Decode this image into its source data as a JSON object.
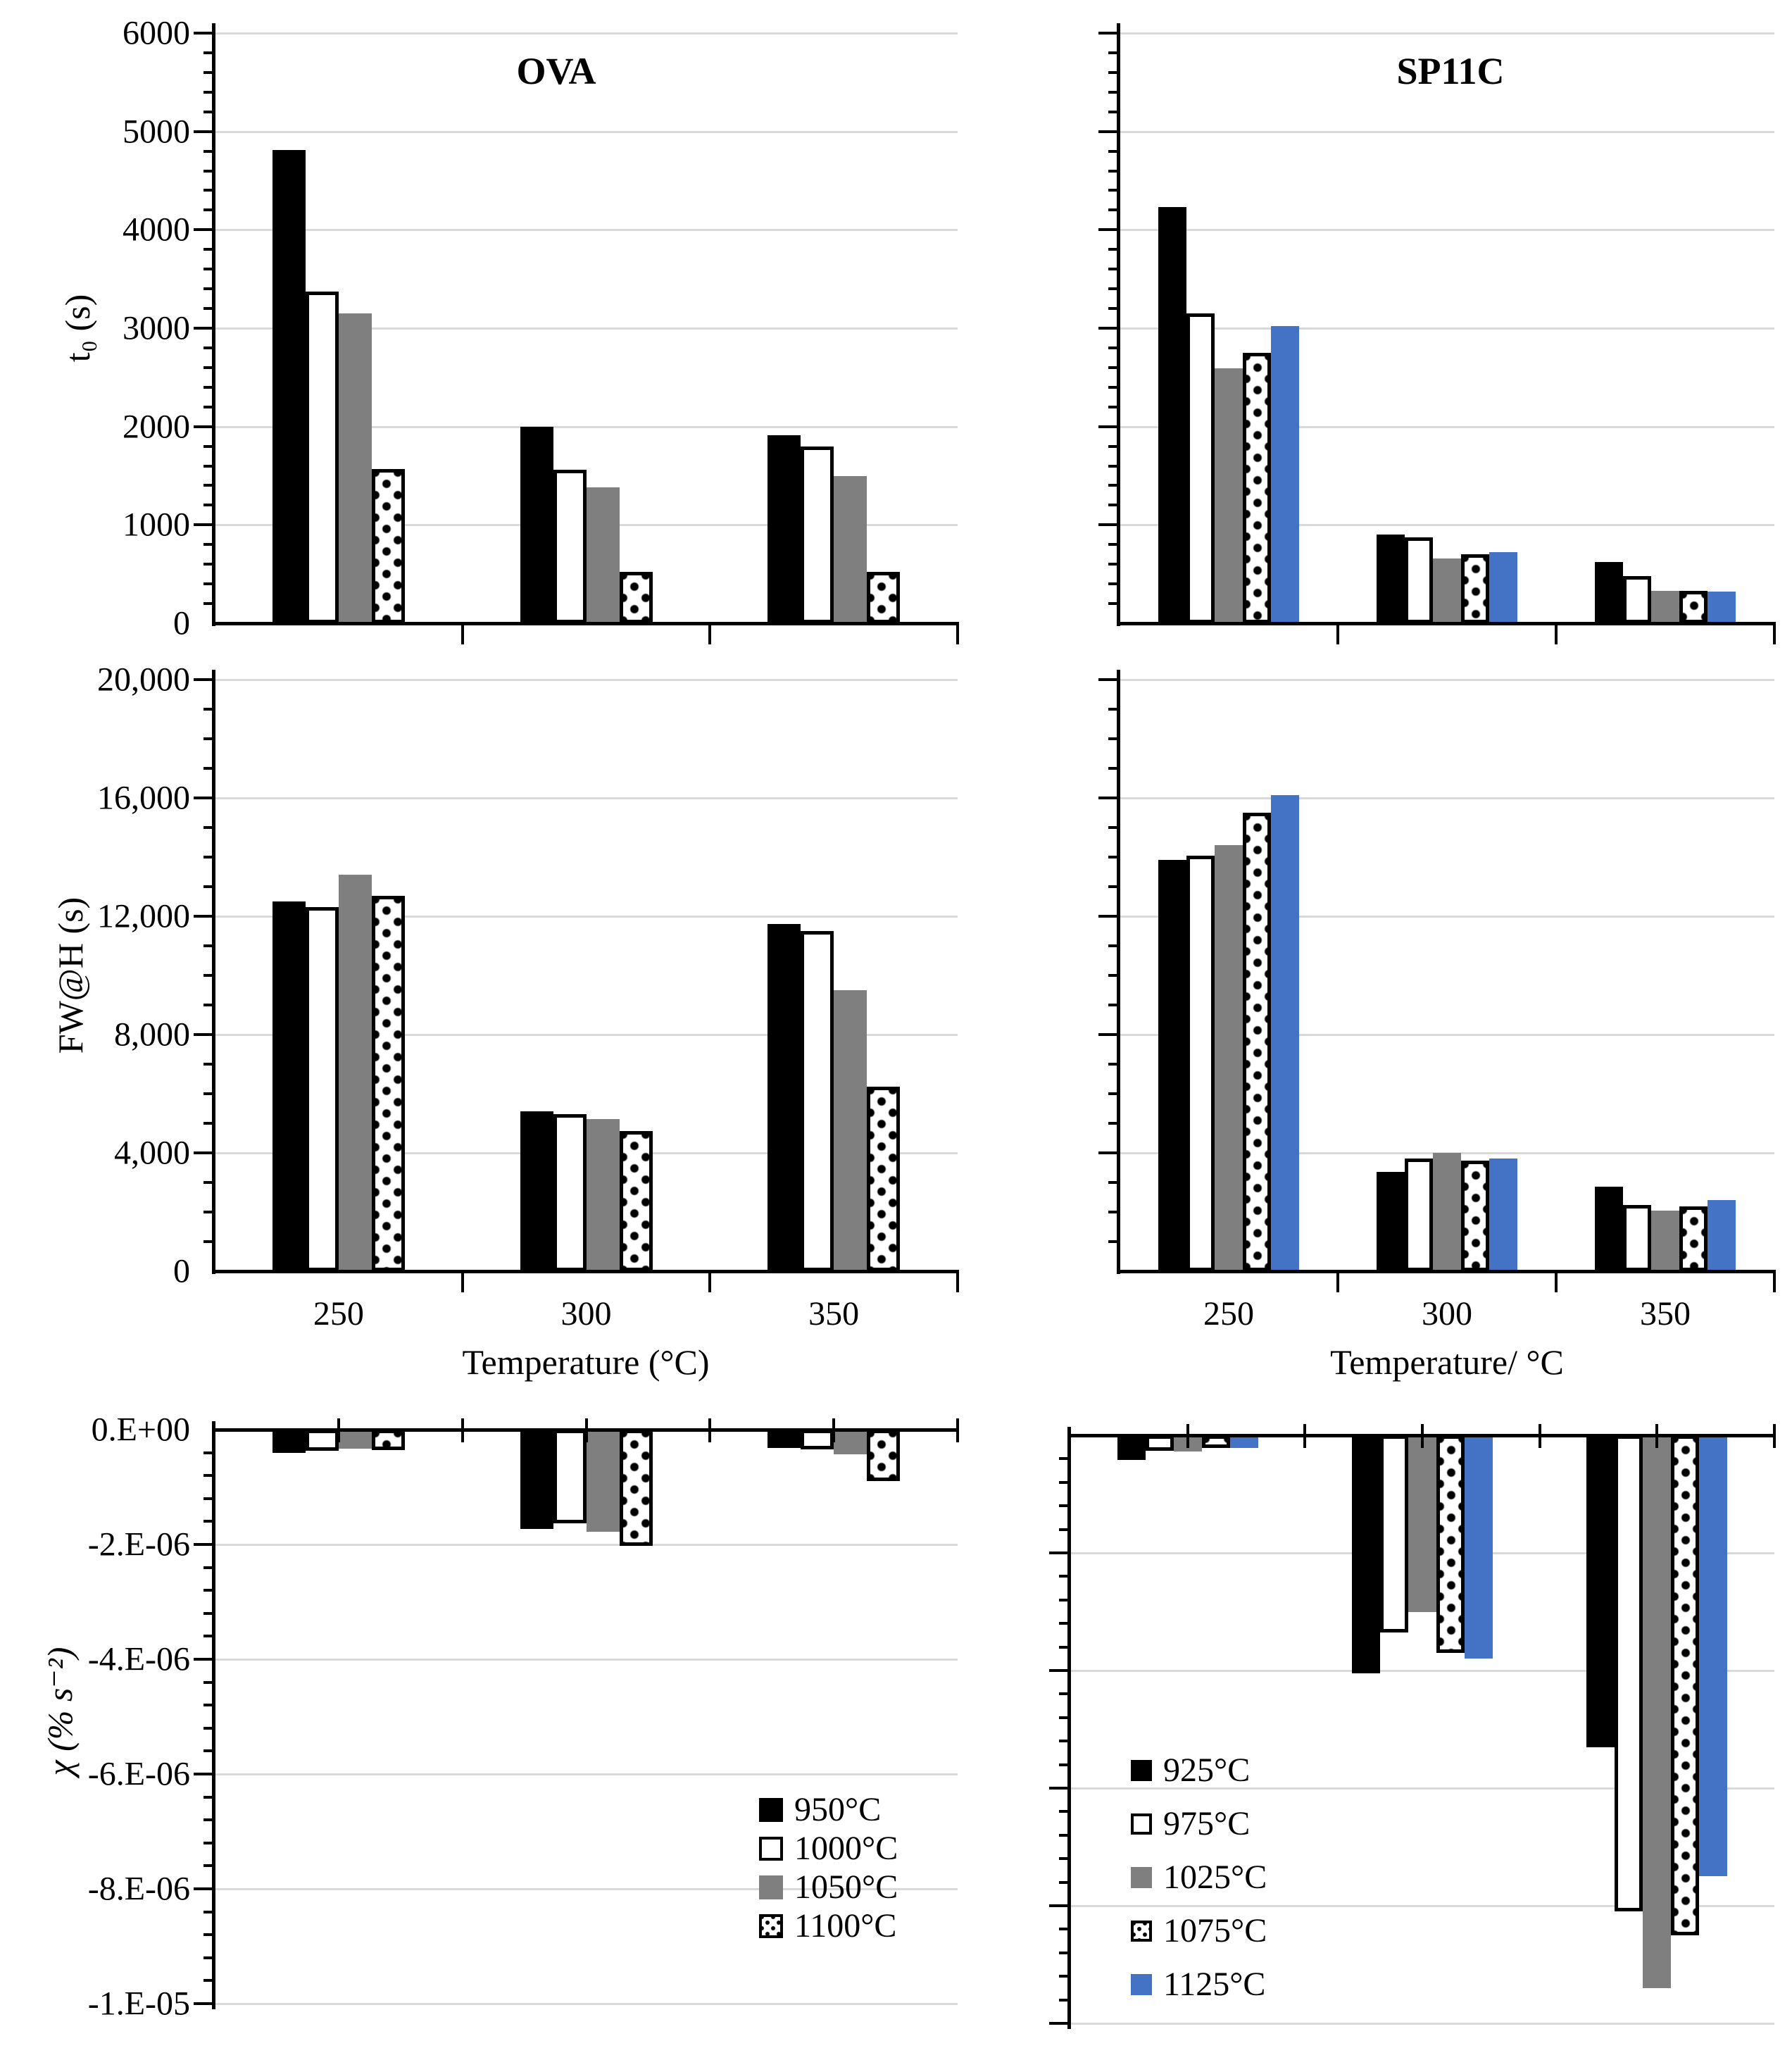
{
  "page": {
    "panel_titles": {
      "left": "OVA",
      "right": "SP11C"
    },
    "axis_titles": {
      "row1_y": "t₀ (s)",
      "row2_y": "FW@H (s)",
      "row3_y": "χ (% s⁻²)",
      "x_left": "Temperature (°C)",
      "x_right": "Temperature/ °C"
    },
    "colors": {
      "black": "#000000",
      "white": "#FFFFFF",
      "gray": "#7F7F7F",
      "dotted_outline": "#000000",
      "blue": "#4472C4",
      "gridline": "#D9D9D9",
      "axis": "#000000"
    }
  },
  "chart_data": [
    {
      "id": "t0-ova",
      "type": "bar",
      "title": "OVA",
      "categories": [
        "250",
        "300",
        "350"
      ],
      "series": [
        {
          "name": "950°C",
          "style": "black",
          "values": [
            4810,
            2000,
            1910
          ]
        },
        {
          "name": "1000°C",
          "style": "white",
          "values": [
            3370,
            1560,
            1800
          ]
        },
        {
          "name": "1050°C",
          "style": "gray",
          "values": [
            3150,
            1380,
            1500
          ]
        },
        {
          "name": "1100°C",
          "style": "dotted",
          "values": [
            1570,
            520,
            520
          ]
        }
      ],
      "ylim": [
        0,
        6000
      ],
      "grid_step": 1000,
      "minor_step": 200,
      "yticks": [
        {
          "v": 6000,
          "label": "6000"
        },
        {
          "v": 5000,
          "label": "5000"
        },
        {
          "v": 4000,
          "label": "4000"
        },
        {
          "v": 3000,
          "label": "3000"
        },
        {
          "v": 2000,
          "label": "2000"
        },
        {
          "v": 1000,
          "label": "1000"
        },
        {
          "v": 0,
          "label": "0"
        }
      ],
      "show_xticks": false,
      "show_legend": false,
      "direction": "up",
      "grid": true
    },
    {
      "id": "t0-sp11c",
      "type": "bar",
      "title": "SP11C",
      "categories": [
        "250",
        "300",
        "350"
      ],
      "series": [
        {
          "name": "925°C",
          "style": "black",
          "values": [
            4230,
            900,
            620
          ]
        },
        {
          "name": "975°C",
          "style": "white",
          "values": [
            3150,
            870,
            480
          ]
        },
        {
          "name": "1025°C",
          "style": "gray",
          "values": [
            2590,
            660,
            330
          ]
        },
        {
          "name": "1075°C",
          "style": "dotted",
          "values": [
            2750,
            700,
            330
          ]
        },
        {
          "name": "1125°C",
          "style": "blue",
          "values": [
            3020,
            720,
            320
          ]
        }
      ],
      "ylim": [
        0,
        6000
      ],
      "grid_step": 1000,
      "minor_step": 200,
      "yticks": [],
      "show_xticks": false,
      "show_legend": false,
      "direction": "up",
      "grid": true
    },
    {
      "id": "fwhh-ova",
      "type": "bar",
      "title": "",
      "categories": [
        "250",
        "300",
        "350"
      ],
      "series": [
        {
          "name": "950°C",
          "style": "black",
          "values": [
            12500,
            5400,
            11750
          ]
        },
        {
          "name": "1000°C",
          "style": "white",
          "values": [
            12300,
            5300,
            11500
          ]
        },
        {
          "name": "1050°C",
          "style": "gray",
          "values": [
            13400,
            5150,
            9500
          ]
        },
        {
          "name": "1100°C",
          "style": "dotted",
          "values": [
            12700,
            4750,
            6250
          ]
        }
      ],
      "ylim": [
        0,
        20000
      ],
      "grid_step": 4000,
      "minor_step": 1000,
      "yticks": [
        {
          "v": 20000,
          "label": "20,000"
        },
        {
          "v": 16000,
          "label": "16,000"
        },
        {
          "v": 12000,
          "label": "12,000"
        },
        {
          "v": 8000,
          "label": "8,000"
        },
        {
          "v": 4000,
          "label": "4,000"
        },
        {
          "v": 0,
          "label": "0"
        }
      ],
      "show_xticks": true,
      "show_legend": false,
      "direction": "up",
      "grid": true
    },
    {
      "id": "fwhh-sp11c",
      "type": "bar",
      "title": "",
      "categories": [
        "250",
        "300",
        "350"
      ],
      "series": [
        {
          "name": "925°C",
          "style": "black",
          "values": [
            13900,
            3350,
            2850
          ]
        },
        {
          "name": "975°C",
          "style": "white",
          "values": [
            14050,
            3800,
            2250
          ]
        },
        {
          "name": "1025°C",
          "style": "gray",
          "values": [
            14400,
            4000,
            2050
          ]
        },
        {
          "name": "1075°C",
          "style": "dotted",
          "values": [
            15500,
            3750,
            2200
          ]
        },
        {
          "name": "1125°C",
          "style": "blue",
          "values": [
            16100,
            3800,
            2400
          ]
        }
      ],
      "ylim": [
        0,
        20000
      ],
      "grid_step": 4000,
      "minor_step": 1000,
      "yticks": [],
      "show_xticks": true,
      "show_legend": false,
      "direction": "up",
      "grid": true
    },
    {
      "id": "chi-ova",
      "type": "bar",
      "title": "",
      "categories": [
        "250",
        "300",
        "350"
      ],
      "series": [
        {
          "name": "950°C",
          "style": "black",
          "values": [
            -4e-07,
            -1.73e-06,
            -3.2e-07
          ]
        },
        {
          "name": "1000°C",
          "style": "white",
          "values": [
            -3.7e-07,
            -1.63e-06,
            -3.4e-07
          ]
        },
        {
          "name": "1050°C",
          "style": "gray",
          "values": [
            -3.3e-07,
            -1.78e-06,
            -4.3e-07
          ]
        },
        {
          "name": "1100°C",
          "style": "dotted",
          "values": [
            -3.5e-07,
            -2.02e-06,
            -9e-07
          ]
        }
      ],
      "ylim": [
        -1e-05,
        0
      ],
      "grid_step": 2e-06,
      "minor_step": 4e-07,
      "yticks": [
        {
          "v": 0,
          "label": "0.E+00"
        },
        {
          "v": -2e-06,
          "label": "-2.E-06"
        },
        {
          "v": -4e-06,
          "label": "-4.E-06"
        },
        {
          "v": -6e-06,
          "label": "-6.E-06"
        },
        {
          "v": -8e-06,
          "label": "-8.E-06"
        },
        {
          "v": -1e-05,
          "label": "-1.E-05"
        }
      ],
      "show_xticks": false,
      "show_legend": true,
      "legend_position": "inside-right",
      "direction": "down",
      "grid": true
    },
    {
      "id": "chi-sp11c",
      "type": "bar",
      "title": "",
      "categories": [
        "250",
        "300",
        "350"
      ],
      "series": [
        {
          "name": "925°C",
          "style": "black",
          "values": [
            -4.2e-07,
            -4.05e-06,
            -5.3e-06
          ]
        },
        {
          "name": "975°C",
          "style": "white",
          "values": [
            -2.6e-07,
            -3.35e-06,
            -8.1e-06
          ]
        },
        {
          "name": "1025°C",
          "style": "gray",
          "values": [
            -2.7e-07,
            -3e-06,
            -9.4e-06
          ]
        },
        {
          "name": "1075°C",
          "style": "dotted",
          "values": [
            -2.2e-07,
            -3.7e-06,
            -8.5e-06
          ]
        },
        {
          "name": "1125°C",
          "style": "blue",
          "values": [
            -2.1e-07,
            -3.8e-06,
            -7.5e-06
          ]
        }
      ],
      "ylim": [
        -1e-05,
        0
      ],
      "grid_step": 2e-06,
      "minor_step": 4e-07,
      "yticks": [],
      "show_xticks": false,
      "show_legend": true,
      "legend_position": "inside-left",
      "direction": "down",
      "grid": true
    }
  ]
}
